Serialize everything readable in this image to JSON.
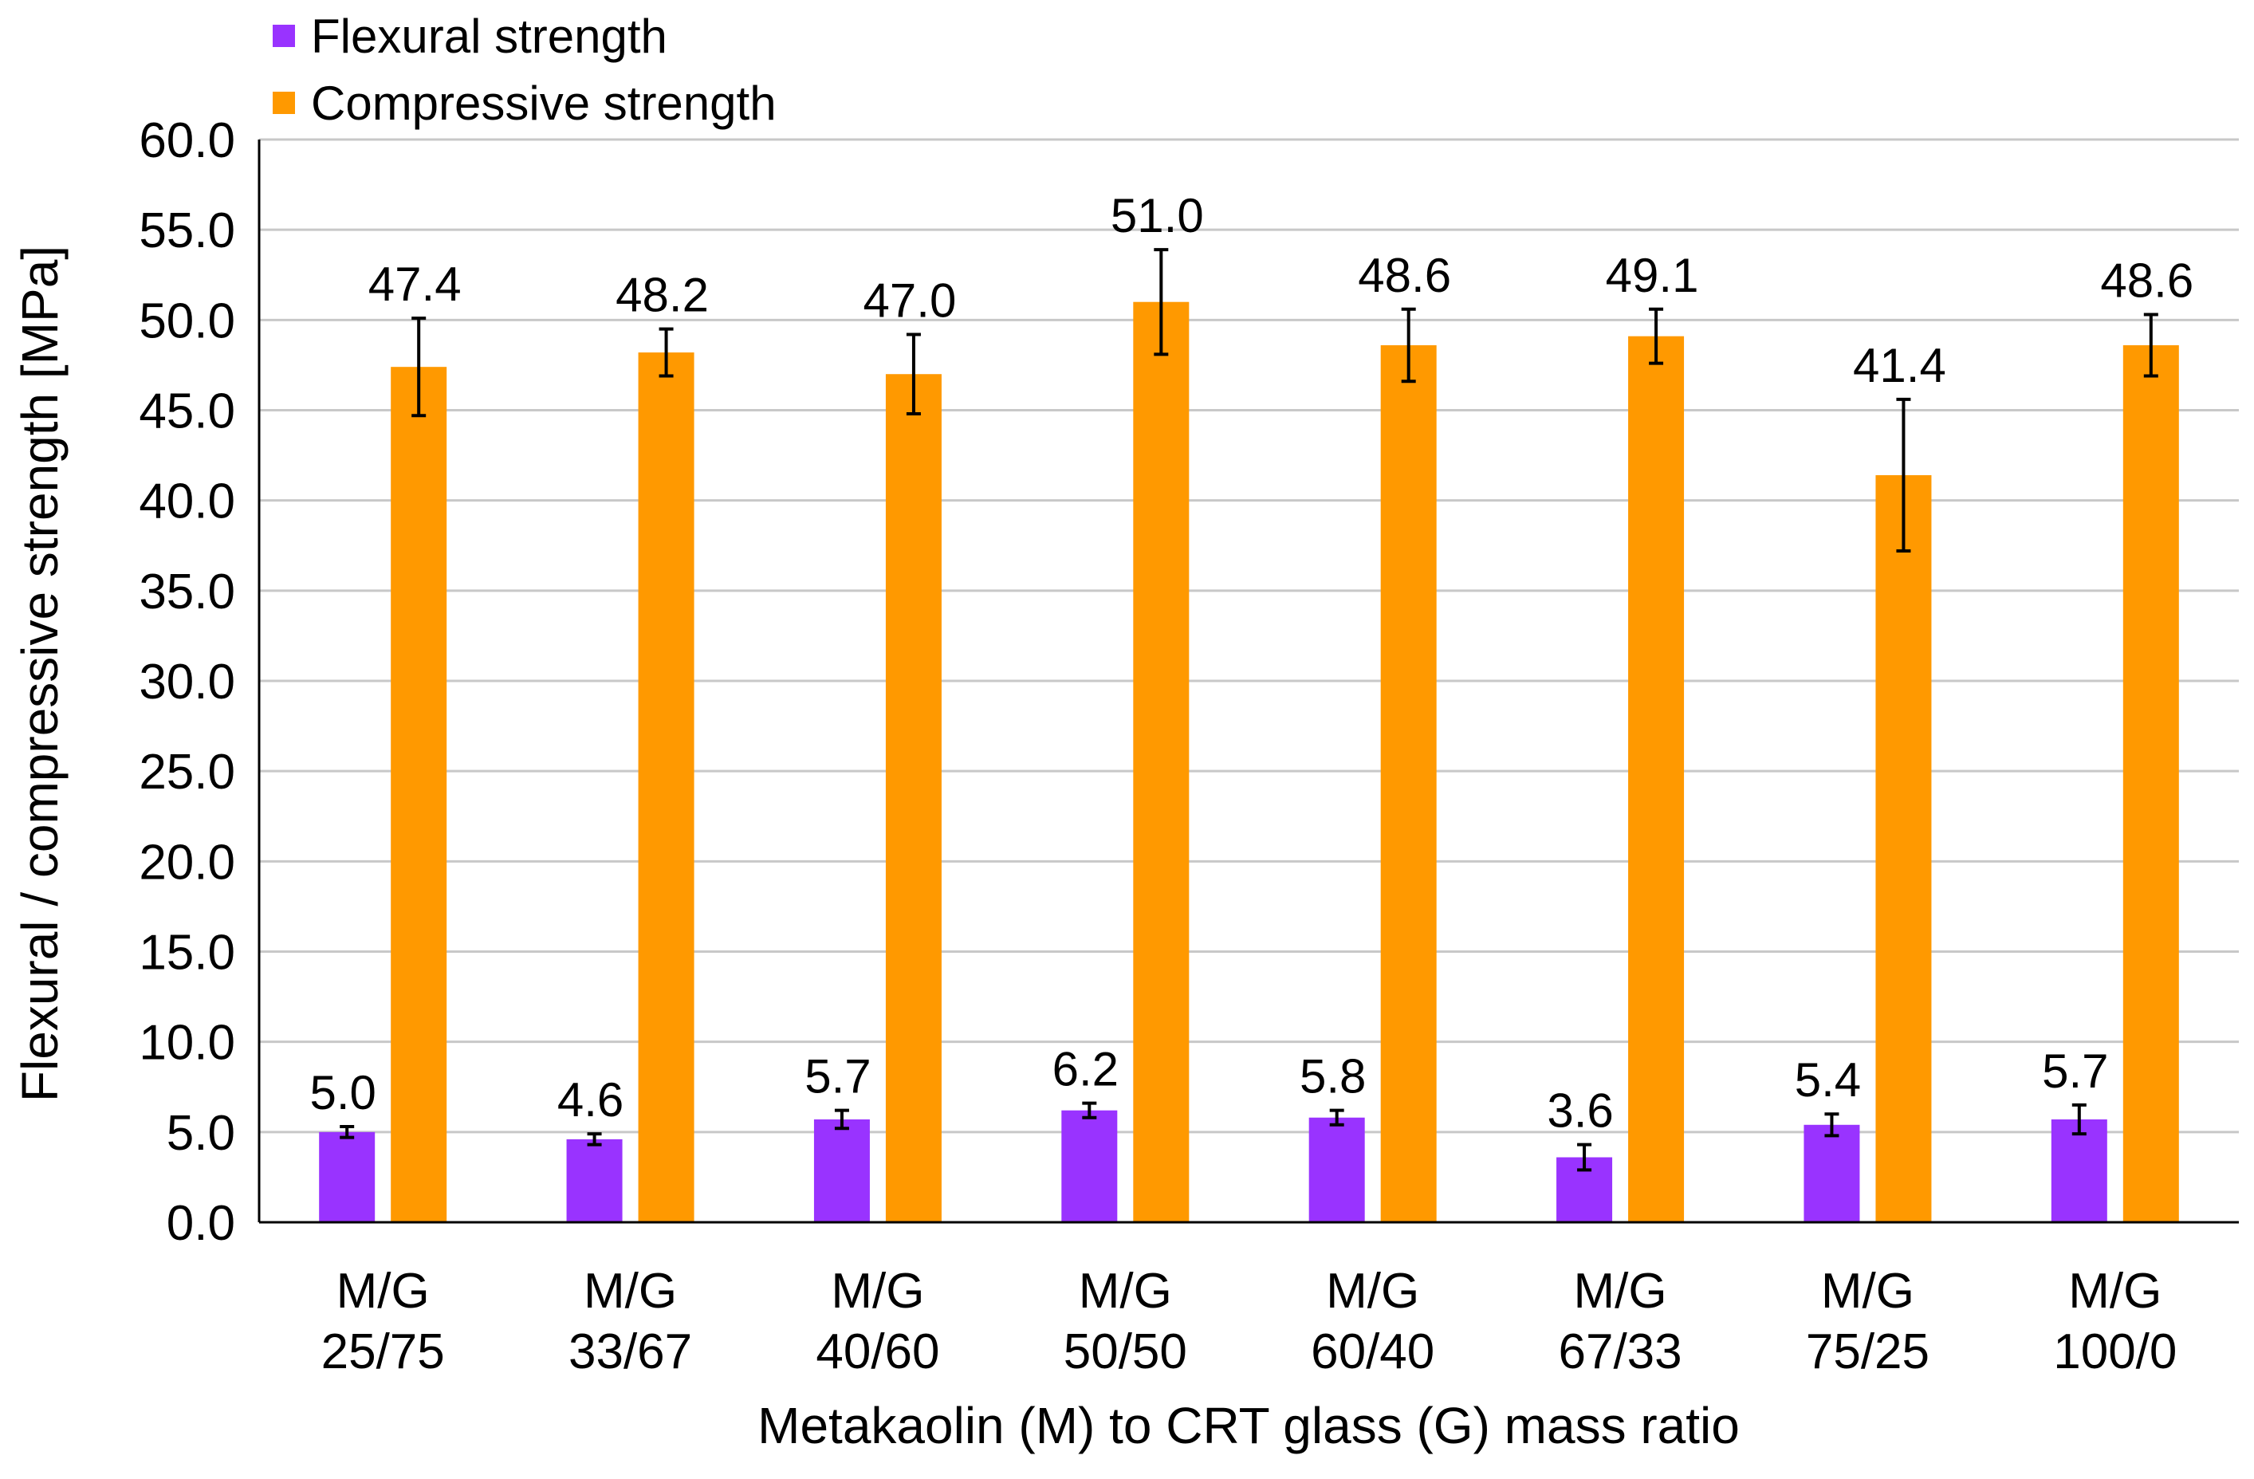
{
  "chart_data": {
    "type": "bar",
    "title": "",
    "xlabel": "Metakaolin (M) to CRT glass (G) mass ratio",
    "ylabel": "Flexural / compressive strength [MPa]",
    "ylim": [
      0,
      60
    ],
    "yticks": [
      0,
      5,
      10,
      15,
      20,
      25,
      30,
      35,
      40,
      45,
      50,
      55,
      60
    ],
    "ytick_labels": [
      "0.0",
      "5.0",
      "10.0",
      "15.0",
      "20.0",
      "25.0",
      "30.0",
      "35.0",
      "40.0",
      "45.0",
      "50.0",
      "55.0",
      "60.0"
    ],
    "grid": true,
    "legend_position": "top-left",
    "categories": [
      [
        "M/G",
        "25/75"
      ],
      [
        "M/G",
        "33/67"
      ],
      [
        "M/G",
        "40/60"
      ],
      [
        "M/G",
        "50/50"
      ],
      [
        "M/G",
        "60/40"
      ],
      [
        "M/G",
        "67/33"
      ],
      [
        "M/G",
        "75/25"
      ],
      [
        "M/G",
        "100/0"
      ]
    ],
    "series": [
      {
        "name": "Flexural strength",
        "color": "#9933FF",
        "values": [
          5.0,
          4.6,
          5.7,
          6.2,
          5.8,
          3.6,
          5.4,
          5.7
        ],
        "value_labels": [
          "5.0",
          "4.6",
          "5.7",
          "6.2",
          "5.8",
          "3.6",
          "5.4",
          "5.7"
        ],
        "error": [
          0.3,
          0.3,
          0.5,
          0.4,
          0.4,
          0.7,
          0.6,
          0.8
        ]
      },
      {
        "name": "Compressive strength",
        "color": "#FF9900",
        "values": [
          47.4,
          48.2,
          47.0,
          51.0,
          48.6,
          49.1,
          41.4,
          48.6
        ],
        "value_labels": [
          "47.4",
          "48.2",
          "47.0",
          "51.0",
          "48.6",
          "49.1",
          "41.4",
          "48.6"
        ],
        "error": [
          2.7,
          1.3,
          2.2,
          2.9,
          2.0,
          1.5,
          4.2,
          1.7
        ]
      }
    ]
  }
}
